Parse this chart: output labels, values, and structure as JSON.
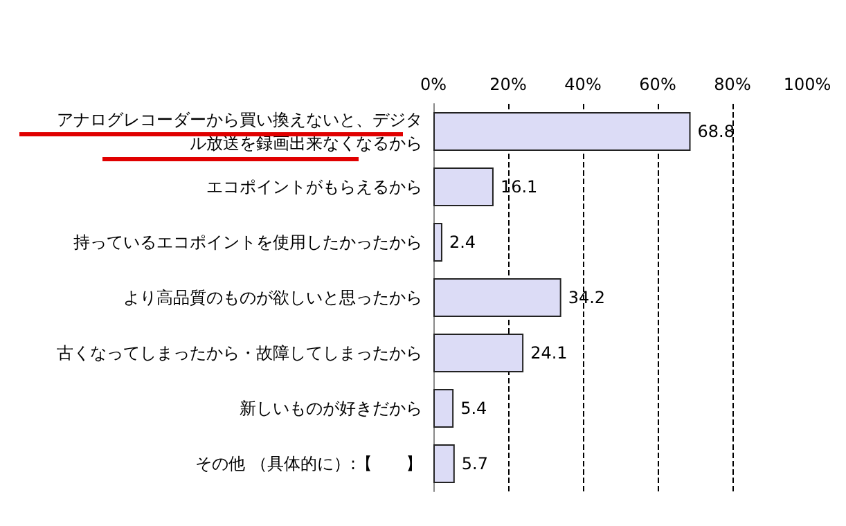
{
  "chart_data": {
    "type": "bar",
    "orientation": "horizontal",
    "categories": [
      "アナログレコーダーから買い換えないと、デジタル放送を録画出来なくなるから",
      "エコポイントがもらえるから",
      "持っているエコポイントを使用したかったから",
      "より高品質のものが欲しいと思ったから",
      "古くなってしまったから・故障してしまったから",
      "新しいものが好きだから",
      "その他 （具体的に）:【　　】"
    ],
    "values": [
      68.8,
      16.1,
      2.4,
      34.2,
      24.1,
      5.4,
      5.7
    ],
    "color": "#dcdcf6",
    "xlim": [
      0,
      100
    ],
    "xticks": [
      {
        "value": 0,
        "label": "0%"
      },
      {
        "value": 20,
        "label": "20%"
      },
      {
        "value": 40,
        "label": "40%"
      },
      {
        "value": 60,
        "label": "60%"
      },
      {
        "value": 80,
        "label": "80%"
      },
      {
        "value": 100,
        "label": "100%"
      }
    ],
    "grid": "x",
    "data_labels": true
  }
}
